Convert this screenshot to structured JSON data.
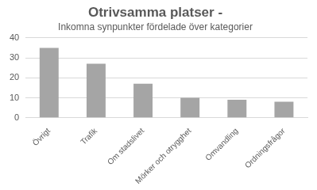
{
  "chart_data": {
    "type": "bar",
    "title": "Otrivsamma platser -",
    "subtitle": "Inkomna synpunkter fördelade över kategorier",
    "categories": [
      "Övrigt",
      "Trafik",
      "Om stadslivet",
      "Mörker och otrygghet",
      "Omvandling",
      "Ordningsfrågor"
    ],
    "values": [
      35,
      27,
      17,
      10,
      9,
      8
    ],
    "color": "#a5a5a5",
    "ylim": [
      0,
      40
    ],
    "yticks": [
      0,
      10,
      20,
      30,
      40
    ],
    "grid": true
  }
}
